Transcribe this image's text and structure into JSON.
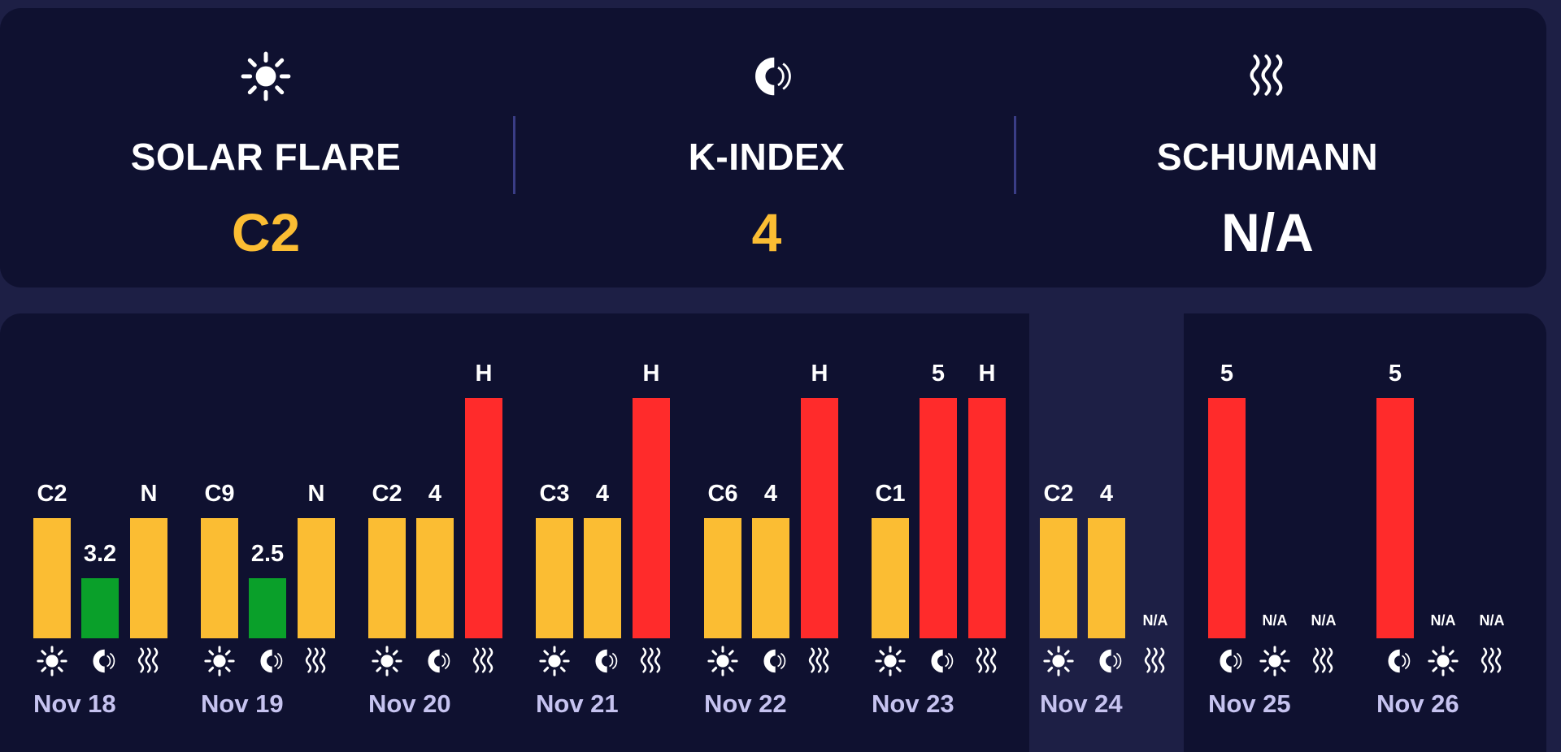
{
  "colors": {
    "amber": "#fbbd33",
    "green": "#0aa02a",
    "red": "#ff2b2b",
    "white": "#ffffff"
  },
  "summary": [
    {
      "icon": "sun-icon",
      "label": "SOLAR FLARE",
      "value": "C2",
      "color": "#fbbd33"
    },
    {
      "icon": "magnet-icon",
      "label": "K-INDEX",
      "value": "4",
      "color": "#fbbd33"
    },
    {
      "icon": "waves-icon",
      "label": "SCHUMANN",
      "value": "N/A",
      "color": "#ffffff"
    }
  ],
  "days": [
    {
      "date": "Nov 18",
      "bars": [
        {
          "kind": "solar",
          "label": "C2",
          "color": "#fbbd33",
          "level": 0.5
        },
        {
          "kind": "kindex",
          "label": "3.2",
          "color": "#0aa02a",
          "level": 0.25
        },
        {
          "kind": "schumann",
          "label": "N",
          "color": "#fbbd33",
          "level": 0.5
        }
      ]
    },
    {
      "date": "Nov 19",
      "bars": [
        {
          "kind": "solar",
          "label": "C9",
          "color": "#fbbd33",
          "level": 0.5
        },
        {
          "kind": "kindex",
          "label": "2.5",
          "color": "#0aa02a",
          "level": 0.25
        },
        {
          "kind": "schumann",
          "label": "N",
          "color": "#fbbd33",
          "level": 0.5
        }
      ]
    },
    {
      "date": "Nov 20",
      "bars": [
        {
          "kind": "solar",
          "label": "C2",
          "color": "#fbbd33",
          "level": 0.5
        },
        {
          "kind": "kindex",
          "label": "4",
          "color": "#fbbd33",
          "level": 0.5
        },
        {
          "kind": "schumann",
          "label": "H",
          "color": "#ff2b2b",
          "level": 1.0
        }
      ]
    },
    {
      "date": "Nov 21",
      "bars": [
        {
          "kind": "solar",
          "label": "C3",
          "color": "#fbbd33",
          "level": 0.5
        },
        {
          "kind": "kindex",
          "label": "4",
          "color": "#fbbd33",
          "level": 0.5
        },
        {
          "kind": "schumann",
          "label": "H",
          "color": "#ff2b2b",
          "level": 1.0
        }
      ]
    },
    {
      "date": "Nov 22",
      "bars": [
        {
          "kind": "solar",
          "label": "C6",
          "color": "#fbbd33",
          "level": 0.5
        },
        {
          "kind": "kindex",
          "label": "4",
          "color": "#fbbd33",
          "level": 0.5
        },
        {
          "kind": "schumann",
          "label": "H",
          "color": "#ff2b2b",
          "level": 1.0
        }
      ]
    },
    {
      "date": "Nov 23",
      "bars": [
        {
          "kind": "solar",
          "label": "C1",
          "color": "#fbbd33",
          "level": 0.5
        },
        {
          "kind": "kindex",
          "label": "5",
          "color": "#ff2b2b",
          "level": 1.0
        },
        {
          "kind": "schumann",
          "label": "H",
          "color": "#ff2b2b",
          "level": 1.0
        }
      ]
    },
    {
      "date": "Nov 24",
      "highlight": true,
      "bars": [
        {
          "kind": "solar",
          "label": "C2",
          "color": "#fbbd33",
          "level": 0.5
        },
        {
          "kind": "kindex",
          "label": "4",
          "color": "#fbbd33",
          "level": 0.5
        },
        {
          "kind": "schumann",
          "label": "N/A",
          "color": "",
          "level": 0
        }
      ]
    },
    {
      "date": "Nov 25",
      "bars": [
        {
          "kind": "kindex",
          "label": "5",
          "color": "#ff2b2b",
          "level": 1.0
        },
        {
          "kind": "solar",
          "label": "N/A",
          "color": "",
          "level": 0
        },
        {
          "kind": "schumann",
          "label": "N/A",
          "color": "",
          "level": 0
        }
      ]
    },
    {
      "date": "Nov 26",
      "bars": [
        {
          "kind": "kindex",
          "label": "5",
          "color": "#ff2b2b",
          "level": 1.0
        },
        {
          "kind": "solar",
          "label": "N/A",
          "color": "",
          "level": 0
        },
        {
          "kind": "schumann",
          "label": "N/A",
          "color": "",
          "level": 0
        }
      ]
    }
  ]
}
